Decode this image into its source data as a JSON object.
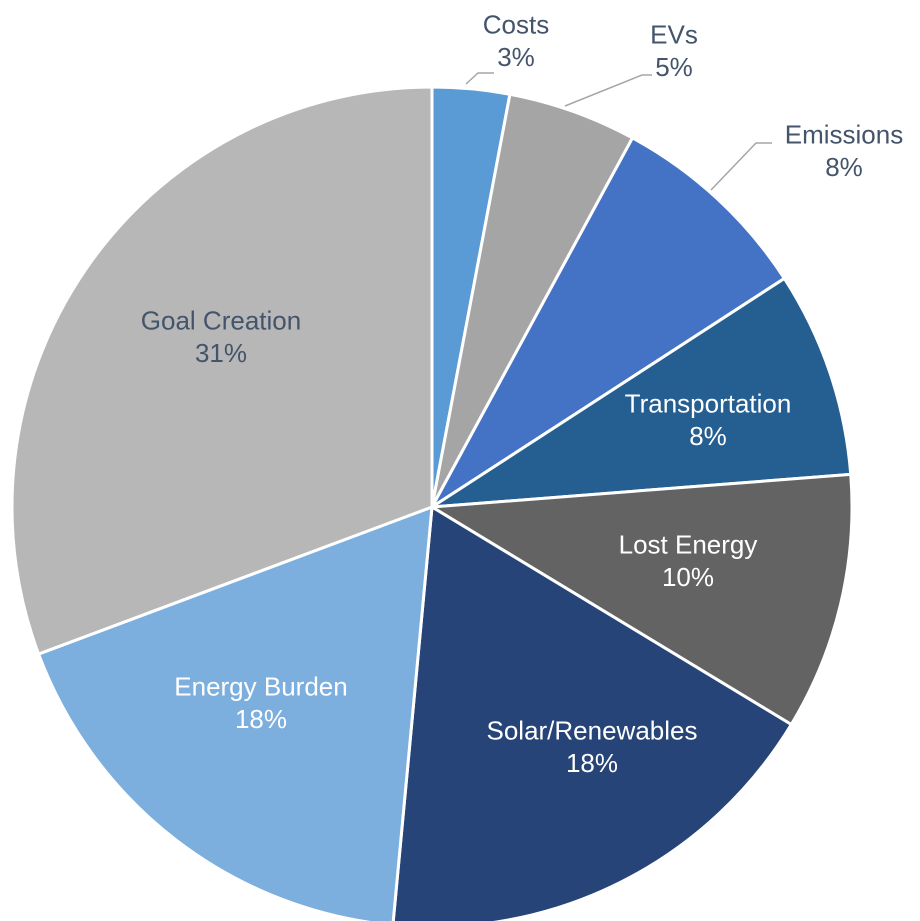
{
  "chart_data": {
    "type": "pie",
    "title": "",
    "slices": [
      {
        "name": "Costs",
        "value": 3,
        "label": "3%",
        "color": "#5b9bd5",
        "label_color": "#44546a"
      },
      {
        "name": "EVs",
        "value": 5,
        "label": "5%",
        "color": "#a5a5a5",
        "label_color": "#44546a"
      },
      {
        "name": "Emissions",
        "value": 8,
        "label": "8%",
        "color": "#4472c4",
        "label_color": "#44546a"
      },
      {
        "name": "Transportation",
        "value": 8,
        "label": "8%",
        "color": "#255e91",
        "label_color": "#ffffff"
      },
      {
        "name": "Lost Energy",
        "value": 10,
        "label": "10%",
        "color": "#636363",
        "label_color": "#ffffff"
      },
      {
        "name": "Solar/Renewables",
        "value": 18,
        "label": "18%",
        "color": "#264478",
        "label_color": "#ffffff"
      },
      {
        "name": "Energy Burden",
        "value": 18,
        "label": "18%",
        "color": "#7cafdd",
        "label_color": "#ffffff"
      },
      {
        "name": "Goal Creation",
        "value": 31,
        "label": "31%",
        "color": "#b7b7b7",
        "label_color": "#44546a"
      }
    ],
    "start": "12 o'clock",
    "direction": "clockwise",
    "legend": "none",
    "data_labels": "category name and percentage"
  }
}
